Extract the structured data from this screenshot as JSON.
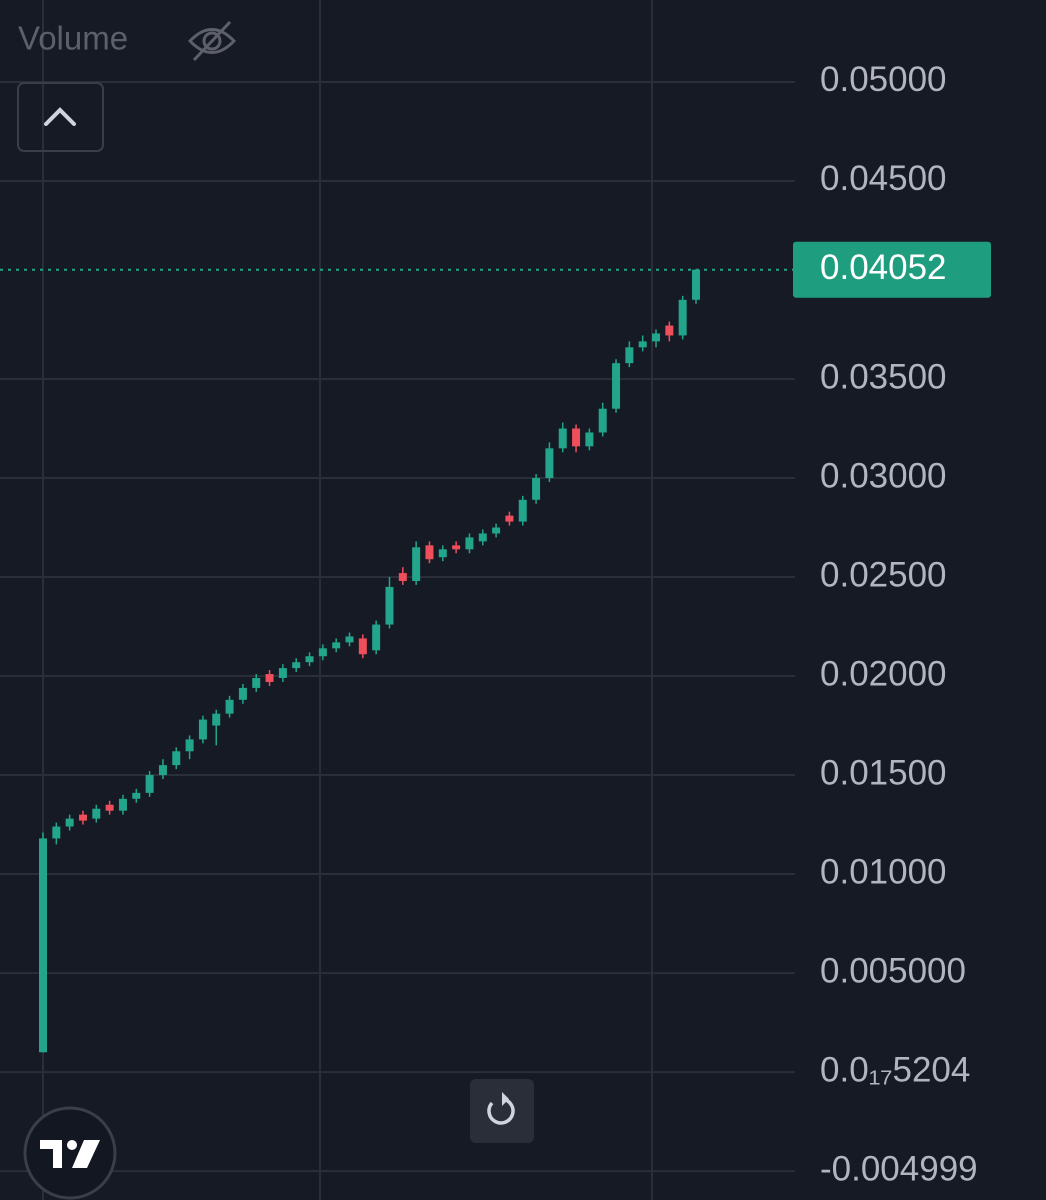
{
  "chart_data": {
    "type": "candlestick",
    "indicator_label": "Volume",
    "up_color": "#22a58a",
    "down_color": "#ef4f5a",
    "grid": true,
    "ylim": [
      -0.00646,
      0.05414
    ],
    "yticks": [
      {
        "value": 0.05,
        "label": "0.05000"
      },
      {
        "value": 0.045,
        "label": "0.04500"
      },
      {
        "value": 0.035,
        "label": "0.03500"
      },
      {
        "value": 0.03,
        "label": "0.03000"
      },
      {
        "value": 0.025,
        "label": "0.02500"
      },
      {
        "value": 0.02,
        "label": "0.02000"
      },
      {
        "value": 0.015,
        "label": "0.01500"
      },
      {
        "value": 0.01,
        "label": "0.01000"
      },
      {
        "value": 0.005,
        "label": "0.005000"
      },
      {
        "value": 5.204e-18,
        "label": "0.0₁₇5204"
      },
      {
        "value": -0.004999,
        "label": "-0.004999"
      }
    ],
    "last_price": {
      "value": 0.04052,
      "label": "0.04052"
    },
    "open": [
      0.001,
      0.0118,
      0.0124,
      0.013,
      0.0128,
      0.0135,
      0.0132,
      0.0138,
      0.0141,
      0.015,
      0.0155,
      0.0162,
      0.0168,
      0.0175,
      0.0181,
      0.0188,
      0.0194,
      0.0201,
      0.0199,
      0.0204,
      0.0207,
      0.021,
      0.0214,
      0.0217,
      0.0219,
      0.0213,
      0.0226,
      0.0252,
      0.0248,
      0.0266,
      0.026,
      0.0266,
      0.0264,
      0.0268,
      0.0272,
      0.0281,
      0.0278,
      0.0289,
      0.03,
      0.0315,
      0.0325,
      0.0316,
      0.0323,
      0.0335,
      0.0358,
      0.0366,
      0.0369,
      0.0377,
      0.0372,
      0.039
    ],
    "high": [
      0.0121,
      0.0126,
      0.013,
      0.0132,
      0.0135,
      0.0137,
      0.014,
      0.0143,
      0.0152,
      0.0158,
      0.0164,
      0.017,
      0.018,
      0.0183,
      0.019,
      0.0196,
      0.0201,
      0.0203,
      0.0206,
      0.0209,
      0.0212,
      0.0216,
      0.0219,
      0.0222,
      0.0221,
      0.0228,
      0.025,
      0.0255,
      0.0268,
      0.0268,
      0.0266,
      0.0268,
      0.0272,
      0.0274,
      0.0277,
      0.0283,
      0.0291,
      0.0302,
      0.0318,
      0.0328,
      0.0327,
      0.0325,
      0.0338,
      0.036,
      0.0369,
      0.0372,
      0.0375,
      0.0379,
      0.0392,
      0.04055
    ],
    "low": [
      0.001,
      0.0115,
      0.0122,
      0.0125,
      0.0126,
      0.013,
      0.013,
      0.0136,
      0.0139,
      0.0148,
      0.0153,
      0.0158,
      0.0166,
      0.0165,
      0.0179,
      0.0186,
      0.0192,
      0.0195,
      0.0197,
      0.0202,
      0.0205,
      0.0208,
      0.0212,
      0.0215,
      0.0209,
      0.0211,
      0.0224,
      0.0246,
      0.0246,
      0.0257,
      0.0258,
      0.0262,
      0.0262,
      0.0266,
      0.027,
      0.0276,
      0.0276,
      0.0287,
      0.0298,
      0.0313,
      0.0313,
      0.0314,
      0.0321,
      0.0333,
      0.0356,
      0.0364,
      0.0366,
      0.0369,
      0.037,
      0.0388
    ],
    "close": [
      0.0118,
      0.0124,
      0.0128,
      0.0127,
      0.0133,
      0.0132,
      0.0138,
      0.0141,
      0.015,
      0.0155,
      0.0162,
      0.0168,
      0.0178,
      0.0181,
      0.0188,
      0.0194,
      0.0199,
      0.0197,
      0.0204,
      0.0207,
      0.021,
      0.0214,
      0.0217,
      0.022,
      0.0211,
      0.0226,
      0.0245,
      0.0248,
      0.0265,
      0.0259,
      0.0264,
      0.0264,
      0.027,
      0.0272,
      0.0275,
      0.0278,
      0.0289,
      0.03,
      0.0315,
      0.0325,
      0.0316,
      0.0323,
      0.0335,
      0.0358,
      0.0366,
      0.0369,
      0.0373,
      0.0372,
      0.039,
      0.04052
    ]
  }
}
